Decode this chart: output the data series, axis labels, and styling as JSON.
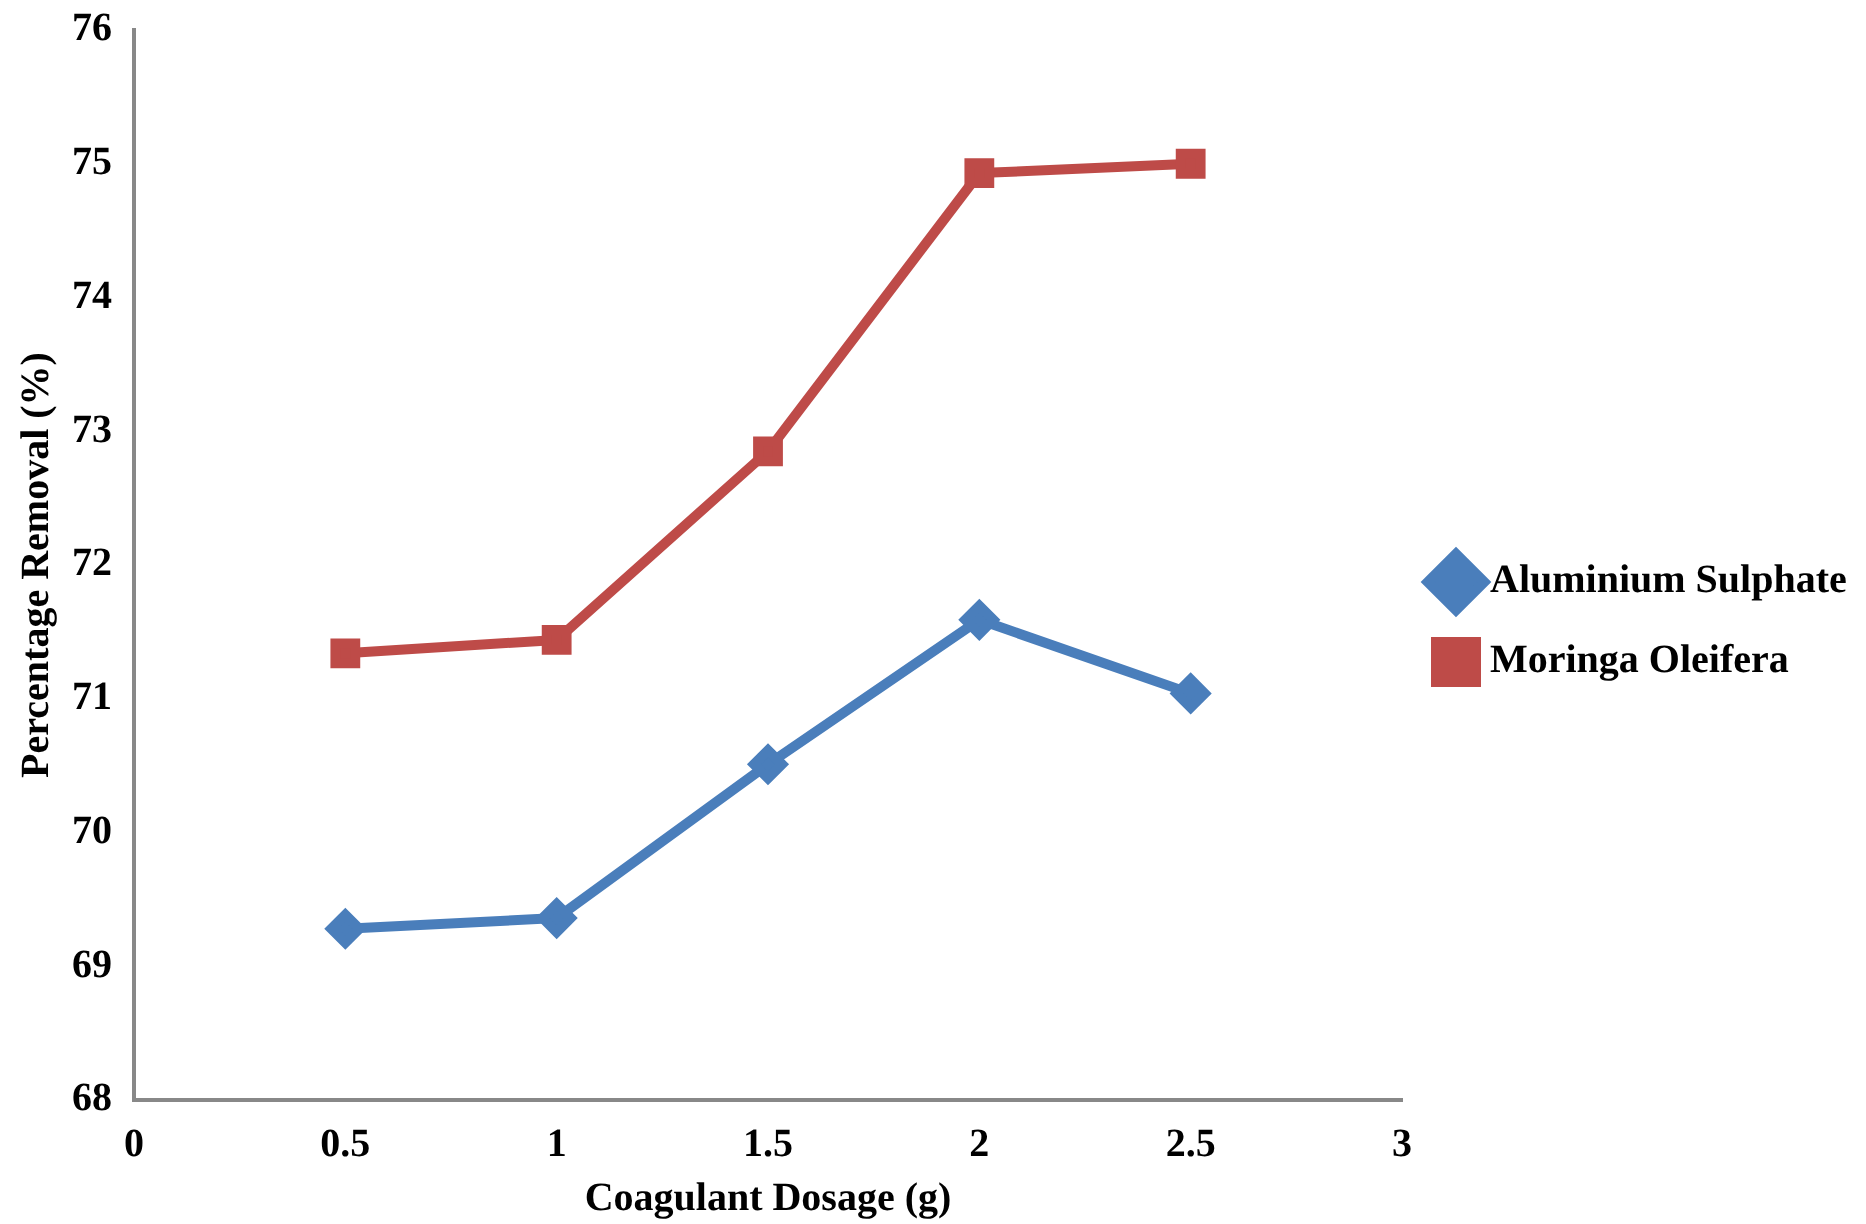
{
  "chart_data": {
    "type": "line",
    "xlabel": "Coagulant Dosage (g)",
    "ylabel": "Percentage Removal (%)",
    "xlim": [
      0,
      3
    ],
    "xticks": [
      0,
      0.5,
      1,
      1.5,
      2,
      2.5,
      3
    ],
    "ylim": [
      68,
      76
    ],
    "yticks": [
      68,
      69,
      70,
      71,
      72,
      73,
      74,
      75,
      76
    ],
    "grid": false,
    "legend": "right",
    "line_style": "solid",
    "x": [
      0.5,
      1,
      1.5,
      2,
      2.5
    ],
    "series": [
      {
        "name": "Aluminium Sulphate",
        "color": "#4a7ebb",
        "marker": "diamond",
        "values": [
          69.28,
          69.36,
          70.51,
          71.59,
          71.04
        ]
      },
      {
        "name": "Moringa Oleifera",
        "color": "#be4b48",
        "marker": "square",
        "values": [
          71.34,
          71.44,
          72.85,
          74.93,
          75.0
        ]
      }
    ]
  }
}
